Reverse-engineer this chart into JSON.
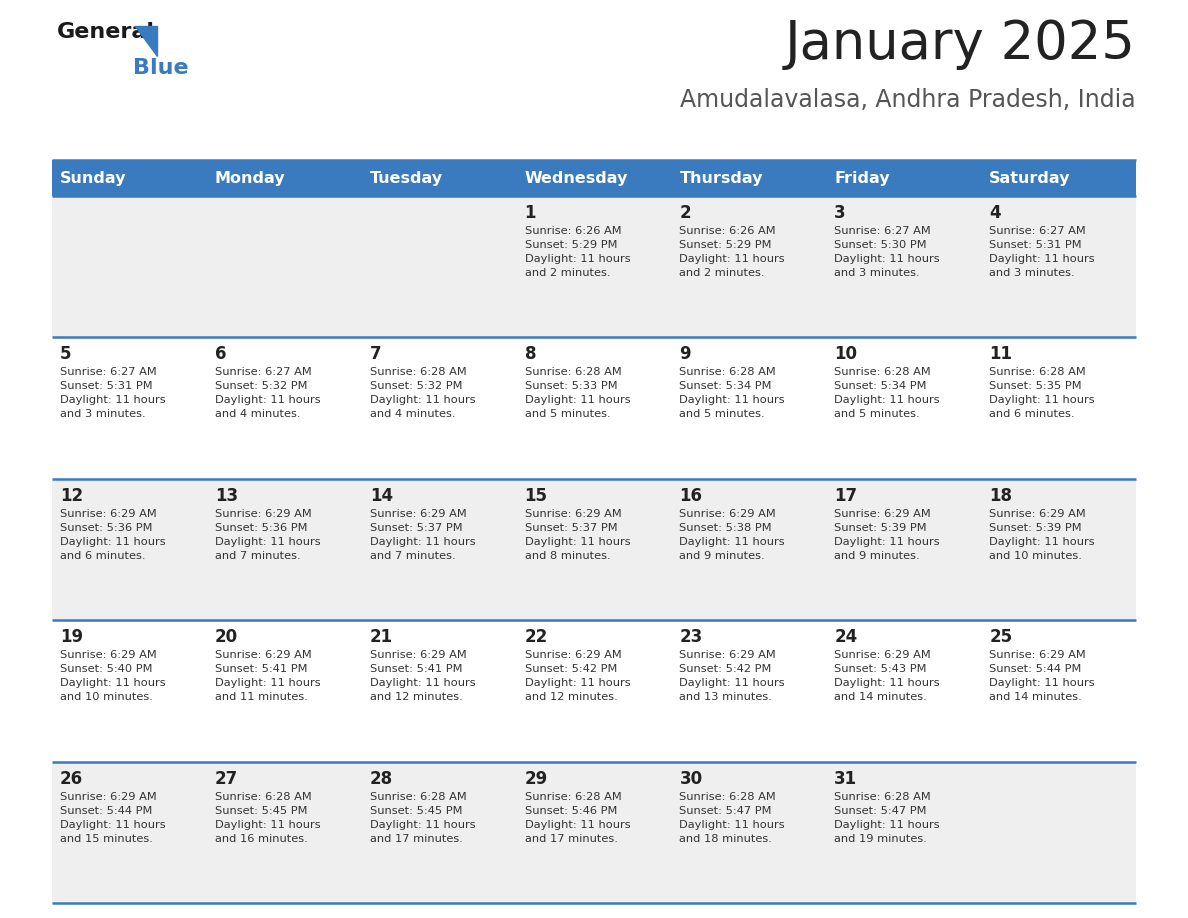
{
  "title": "January 2025",
  "subtitle": "Amudalavalasa, Andhra Pradesh, India",
  "days_of_week": [
    "Sunday",
    "Monday",
    "Tuesday",
    "Wednesday",
    "Thursday",
    "Friday",
    "Saturday"
  ],
  "header_bg": "#3a7abf",
  "header_text": "#ffffff",
  "row_bg_light": "#efefef",
  "row_bg_white": "#ffffff",
  "cell_text_color": "#333333",
  "day_num_color": "#222222",
  "divider_color": "#3a7abf",
  "title_color": "#222222",
  "subtitle_color": "#555555",
  "calendar_data": [
    [
      null,
      null,
      null,
      {
        "day": 1,
        "sunrise": "6:26 AM",
        "sunset": "5:29 PM",
        "daylight": "11 hours\nand 2 minutes."
      },
      {
        "day": 2,
        "sunrise": "6:26 AM",
        "sunset": "5:29 PM",
        "daylight": "11 hours\nand 2 minutes."
      },
      {
        "day": 3,
        "sunrise": "6:27 AM",
        "sunset": "5:30 PM",
        "daylight": "11 hours\nand 3 minutes."
      },
      {
        "day": 4,
        "sunrise": "6:27 AM",
        "sunset": "5:31 PM",
        "daylight": "11 hours\nand 3 minutes."
      }
    ],
    [
      {
        "day": 5,
        "sunrise": "6:27 AM",
        "sunset": "5:31 PM",
        "daylight": "11 hours\nand 3 minutes."
      },
      {
        "day": 6,
        "sunrise": "6:27 AM",
        "sunset": "5:32 PM",
        "daylight": "11 hours\nand 4 minutes."
      },
      {
        "day": 7,
        "sunrise": "6:28 AM",
        "sunset": "5:32 PM",
        "daylight": "11 hours\nand 4 minutes."
      },
      {
        "day": 8,
        "sunrise": "6:28 AM",
        "sunset": "5:33 PM",
        "daylight": "11 hours\nand 5 minutes."
      },
      {
        "day": 9,
        "sunrise": "6:28 AM",
        "sunset": "5:34 PM",
        "daylight": "11 hours\nand 5 minutes."
      },
      {
        "day": 10,
        "sunrise": "6:28 AM",
        "sunset": "5:34 PM",
        "daylight": "11 hours\nand 5 minutes."
      },
      {
        "day": 11,
        "sunrise": "6:28 AM",
        "sunset": "5:35 PM",
        "daylight": "11 hours\nand 6 minutes."
      }
    ],
    [
      {
        "day": 12,
        "sunrise": "6:29 AM",
        "sunset": "5:36 PM",
        "daylight": "11 hours\nand 6 minutes."
      },
      {
        "day": 13,
        "sunrise": "6:29 AM",
        "sunset": "5:36 PM",
        "daylight": "11 hours\nand 7 minutes."
      },
      {
        "day": 14,
        "sunrise": "6:29 AM",
        "sunset": "5:37 PM",
        "daylight": "11 hours\nand 7 minutes."
      },
      {
        "day": 15,
        "sunrise": "6:29 AM",
        "sunset": "5:37 PM",
        "daylight": "11 hours\nand 8 minutes."
      },
      {
        "day": 16,
        "sunrise": "6:29 AM",
        "sunset": "5:38 PM",
        "daylight": "11 hours\nand 9 minutes."
      },
      {
        "day": 17,
        "sunrise": "6:29 AM",
        "sunset": "5:39 PM",
        "daylight": "11 hours\nand 9 minutes."
      },
      {
        "day": 18,
        "sunrise": "6:29 AM",
        "sunset": "5:39 PM",
        "daylight": "11 hours\nand 10 minutes."
      }
    ],
    [
      {
        "day": 19,
        "sunrise": "6:29 AM",
        "sunset": "5:40 PM",
        "daylight": "11 hours\nand 10 minutes."
      },
      {
        "day": 20,
        "sunrise": "6:29 AM",
        "sunset": "5:41 PM",
        "daylight": "11 hours\nand 11 minutes."
      },
      {
        "day": 21,
        "sunrise": "6:29 AM",
        "sunset": "5:41 PM",
        "daylight": "11 hours\nand 12 minutes."
      },
      {
        "day": 22,
        "sunrise": "6:29 AM",
        "sunset": "5:42 PM",
        "daylight": "11 hours\nand 12 minutes."
      },
      {
        "day": 23,
        "sunrise": "6:29 AM",
        "sunset": "5:42 PM",
        "daylight": "11 hours\nand 13 minutes."
      },
      {
        "day": 24,
        "sunrise": "6:29 AM",
        "sunset": "5:43 PM",
        "daylight": "11 hours\nand 14 minutes."
      },
      {
        "day": 25,
        "sunrise": "6:29 AM",
        "sunset": "5:44 PM",
        "daylight": "11 hours\nand 14 minutes."
      }
    ],
    [
      {
        "day": 26,
        "sunrise": "6:29 AM",
        "sunset": "5:44 PM",
        "daylight": "11 hours\nand 15 minutes."
      },
      {
        "day": 27,
        "sunrise": "6:28 AM",
        "sunset": "5:45 PM",
        "daylight": "11 hours\nand 16 minutes."
      },
      {
        "day": 28,
        "sunrise": "6:28 AM",
        "sunset": "5:45 PM",
        "daylight": "11 hours\nand 17 minutes."
      },
      {
        "day": 29,
        "sunrise": "6:28 AM",
        "sunset": "5:46 PM",
        "daylight": "11 hours\nand 17 minutes."
      },
      {
        "day": 30,
        "sunrise": "6:28 AM",
        "sunset": "5:47 PM",
        "daylight": "11 hours\nand 18 minutes."
      },
      {
        "day": 31,
        "sunrise": "6:28 AM",
        "sunset": "5:47 PM",
        "daylight": "11 hours\nand 19 minutes."
      },
      null
    ]
  ]
}
